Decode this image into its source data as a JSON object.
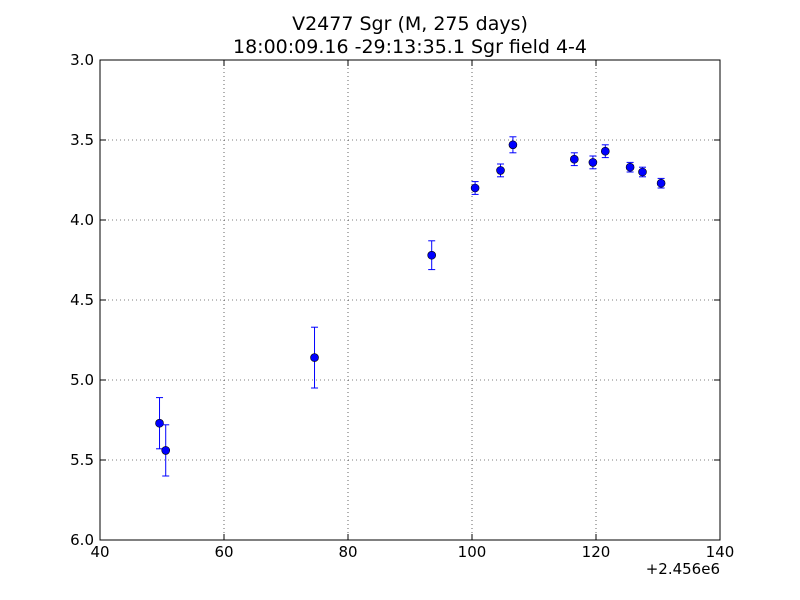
{
  "chart_data": {
    "type": "scatter",
    "title": "V2477 Sgr  (M, 275 days)",
    "subtitle": "18:00:09.16 -29:13:35.1 Sgr field 4-4",
    "xlabel": "",
    "ylabel": "",
    "x_offset_label": "+2.456e6",
    "xlim": [
      40,
      140
    ],
    "ylim": [
      3.0,
      6.0
    ],
    "y_inverted": true,
    "grid": true,
    "x_ticks": [
      40,
      60,
      80,
      100,
      120,
      140
    ],
    "x_tick_labels": [
      "40",
      "60",
      "80",
      "100",
      "120",
      "140"
    ],
    "y_ticks": [
      3.0,
      3.5,
      4.0,
      4.5,
      5.0,
      5.5,
      6.0
    ],
    "y_tick_labels": [
      "3.0",
      "3.5",
      "4.0",
      "4.5",
      "5.0",
      "5.5",
      "6.0"
    ],
    "marker_color": "#0000ff",
    "points": [
      {
        "x": 49.6,
        "y": 5.27,
        "err": 0.16
      },
      {
        "x": 50.6,
        "y": 5.44,
        "err": 0.16
      },
      {
        "x": 74.6,
        "y": 4.86,
        "err": 0.19
      },
      {
        "x": 93.5,
        "y": 4.22,
        "err": 0.09
      },
      {
        "x": 100.5,
        "y": 3.8,
        "err": 0.04
      },
      {
        "x": 104.6,
        "y": 3.69,
        "err": 0.04
      },
      {
        "x": 106.6,
        "y": 3.53,
        "err": 0.05
      },
      {
        "x": 116.5,
        "y": 3.62,
        "err": 0.04
      },
      {
        "x": 119.5,
        "y": 3.64,
        "err": 0.04
      },
      {
        "x": 121.5,
        "y": 3.57,
        "err": 0.04
      },
      {
        "x": 125.5,
        "y": 3.67,
        "err": 0.03
      },
      {
        "x": 127.5,
        "y": 3.7,
        "err": 0.03
      },
      {
        "x": 130.5,
        "y": 3.77,
        "err": 0.03
      }
    ]
  }
}
